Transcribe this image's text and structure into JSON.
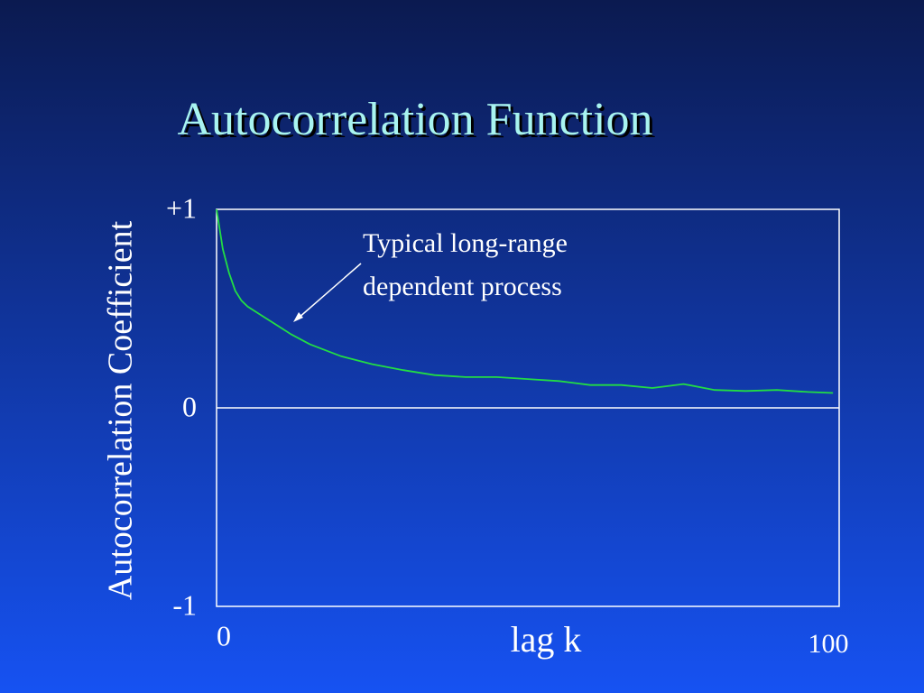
{
  "chart_data": {
    "type": "line",
    "title": "Autocorrelation Function",
    "xlabel": "lag k",
    "ylabel": "Autocorrelation Coefficient",
    "annotation": [
      "Typical long-range",
      "dependent process"
    ],
    "xlim": [
      0,
      100
    ],
    "xticks": [
      0,
      100
    ],
    "ylim": [
      -1,
      1
    ],
    "yticks": [
      {
        "value": 1,
        "label": "+1"
      },
      0,
      -1
    ],
    "series": [
      {
        "color": "#22dd44",
        "x": [
          0,
          1,
          2,
          3,
          4,
          5,
          7,
          10,
          12,
          15,
          20,
          25,
          30,
          35,
          40,
          45,
          50,
          55,
          60,
          65,
          70,
          75,
          80,
          85,
          90,
          95,
          99
        ],
        "values": [
          1.0,
          0.8,
          0.68,
          0.59,
          0.54,
          0.51,
          0.47,
          0.41,
          0.37,
          0.32,
          0.26,
          0.22,
          0.19,
          0.165,
          0.155,
          0.155,
          0.145,
          0.135,
          0.115,
          0.115,
          0.1,
          0.12,
          0.09,
          0.085,
          0.09,
          0.08,
          0.075
        ]
      }
    ]
  }
}
